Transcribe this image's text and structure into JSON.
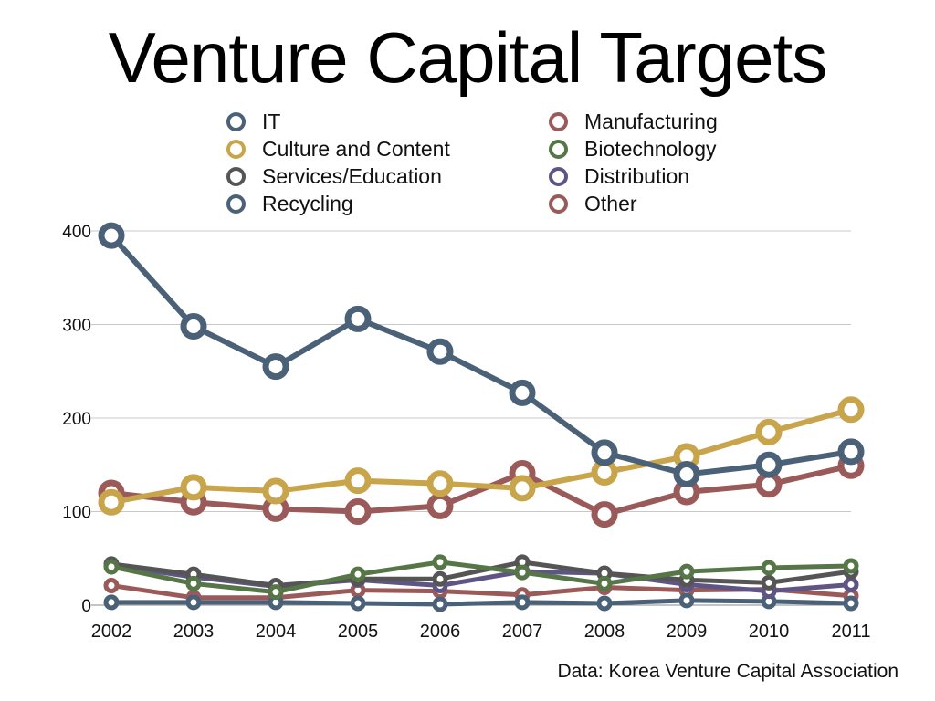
{
  "chart_data": {
    "type": "line",
    "title": "Venture Capital Targets",
    "source": "Data: Korea Venture Capital Association",
    "x": [
      "2002",
      "2003",
      "2004",
      "2005",
      "2006",
      "2007",
      "2008",
      "2009",
      "2010",
      "2011"
    ],
    "ylim": [
      0,
      400
    ],
    "yticks": [
      "0",
      "100",
      "200",
      "300",
      "400"
    ],
    "grid": true,
    "legend_position": "top",
    "series": [
      {
        "name": "IT",
        "color": "#4b6178",
        "values": [
          395,
          298,
          255,
          306,
          271,
          227,
          163,
          140,
          150,
          164
        ]
      },
      {
        "name": "Manufacturing",
        "color": "#9b5a5a",
        "values": [
          120,
          110,
          103,
          100,
          106,
          141,
          97,
          121,
          129,
          149
        ]
      },
      {
        "name": "Culture and Content",
        "color": "#c8a44a",
        "values": [
          110,
          126,
          122,
          133,
          130,
          125,
          142,
          159,
          185,
          209
        ]
      },
      {
        "name": "Biotechnology",
        "color": "#567648",
        "values": [
          41,
          23,
          14,
          33,
          46,
          35,
          23,
          36,
          40,
          42
        ]
      },
      {
        "name": "Services/Education",
        "color": "#555555",
        "values": [
          44,
          33,
          21,
          28,
          28,
          46,
          34,
          27,
          24,
          36
        ]
      },
      {
        "name": "Distribution",
        "color": "#5f5585",
        "values": [
          43,
          30,
          20,
          27,
          21,
          36,
          34,
          22,
          15,
          22
        ]
      },
      {
        "name": "Recycling",
        "color": "#4b6178",
        "values": [
          3,
          3,
          3,
          2,
          1,
          3,
          2,
          5,
          4,
          2
        ]
      },
      {
        "name": "Other",
        "color": "#9b5a5a",
        "values": [
          21,
          8,
          8,
          16,
          15,
          11,
          19,
          16,
          17,
          10
        ]
      }
    ]
  },
  "legend": [
    {
      "label": "IT",
      "color": "#4b6178"
    },
    {
      "label": "Manufacturing",
      "color": "#9b5a5a"
    },
    {
      "label": "Culture and Content",
      "color": "#c8a44a"
    },
    {
      "label": "Biotechnology",
      "color": "#567648"
    },
    {
      "label": "Services/Education",
      "color": "#555555"
    },
    {
      "label": "Distribution",
      "color": "#5f5585"
    },
    {
      "label": "Recycling",
      "color": "#4b6178"
    },
    {
      "label": "Other",
      "color": "#9b5a5a"
    }
  ]
}
